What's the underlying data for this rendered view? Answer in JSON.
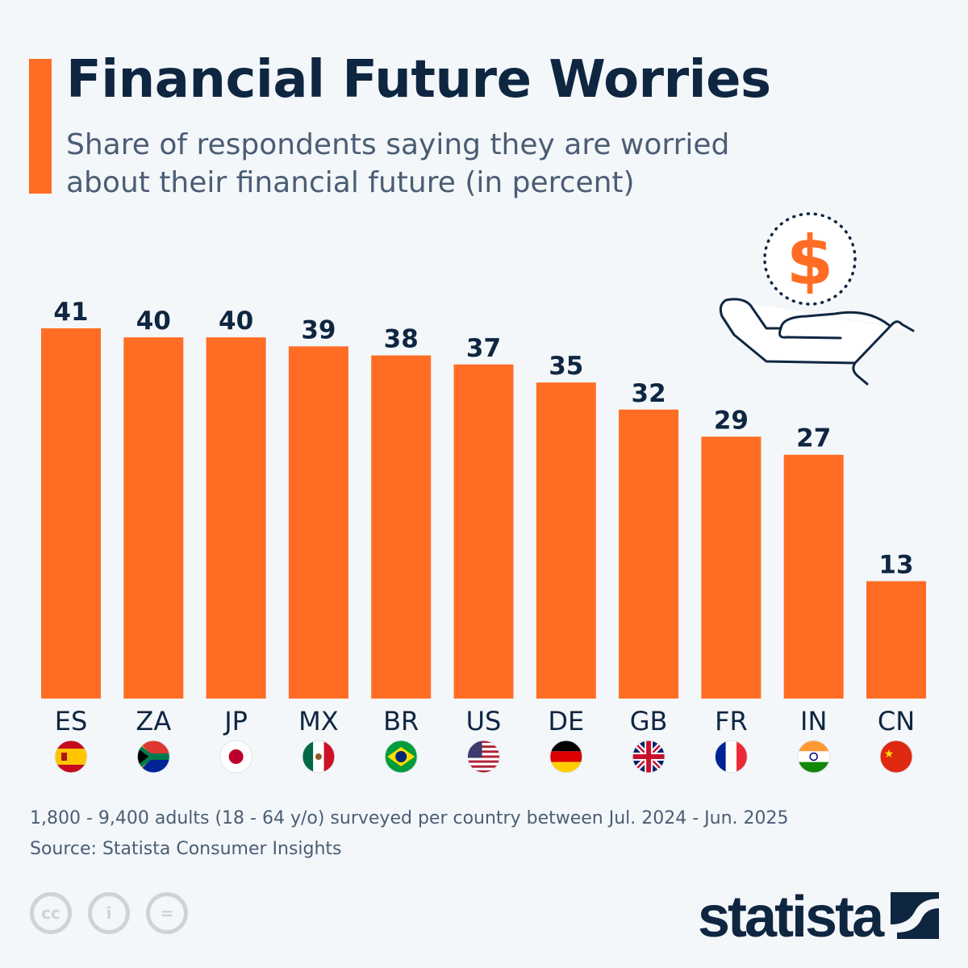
{
  "header": {
    "title": "Financial Future Worries",
    "subtitle": "Share of respondents saying they are worried about their financial future (in percent)"
  },
  "chart_data": {
    "type": "bar",
    "title": "Financial Future Worries",
    "subtitle": "Share of respondents saying they are worried about their financial future (in percent)",
    "categories": [
      "ES",
      "ZA",
      "JP",
      "MX",
      "BR",
      "US",
      "DE",
      "GB",
      "FR",
      "IN",
      "CN"
    ],
    "values": [
      41,
      40,
      40,
      39,
      38,
      37,
      35,
      32,
      29,
      27,
      13
    ],
    "ylim": [
      0,
      41
    ],
    "grid": false,
    "data_labels": true,
    "bar_color": "#ff6d24",
    "flags": [
      "spain-flag",
      "south-africa-flag",
      "japan-flag",
      "mexico-flag",
      "brazil-flag",
      "usa-flag",
      "germany-flag",
      "uk-flag",
      "france-flag",
      "india-flag",
      "china-flag"
    ]
  },
  "footer": {
    "note": "1,800 - 9,400 adults (18 - 64 y/o) surveyed per country between Jul. 2024 - Jun. 2025",
    "source": "Source: Statista Consumer Insights",
    "brand": "statista",
    "license_icons": [
      "cc-icon",
      "attribution-icon",
      "no-derivatives-icon"
    ]
  },
  "colors": {
    "accent": "#ff6d24",
    "navy": "#0f2641",
    "text": "#4b5d74",
    "background": "#f3f7fa"
  }
}
